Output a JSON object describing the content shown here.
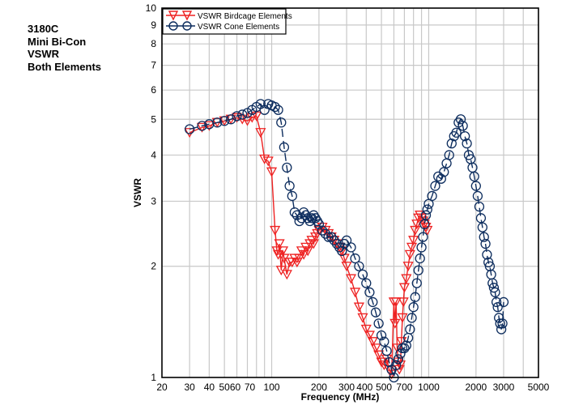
{
  "side_title": [
    "3180C",
    "Mini Bi-Con",
    "VSWR",
    "Both Elements"
  ],
  "chart_data": {
    "type": "line",
    "title": "3180C Mini Bi-Con VSWR Both Elements",
    "xlabel": "Frequency (MHz)",
    "ylabel": "VSWR",
    "xscale": "log",
    "yscale": "log",
    "xlim": [
      20,
      5000
    ],
    "ylim": [
      1,
      10
    ],
    "grid": true,
    "legend_position": "top-left",
    "x_ticks": [
      20,
      30,
      40,
      50,
      60,
      70,
      100,
      200,
      300,
      400,
      500,
      700,
      1000,
      2000,
      3000,
      5000
    ],
    "x_tick_labels": [
      "20",
      "30",
      "40",
      "50",
      "60",
      "70",
      "100",
      "200",
      "300",
      "400",
      "500",
      "700",
      "1000",
      "2000",
      "3000",
      "5000"
    ],
    "x_gridlines": [
      30,
      40,
      50,
      60,
      70,
      80,
      90,
      100,
      200,
      300,
      400,
      500,
      600,
      700,
      800,
      900,
      1000,
      2000,
      3000,
      4000
    ],
    "y_ticks": [
      1,
      2,
      3,
      4,
      5,
      6,
      7,
      8,
      9,
      10
    ],
    "y_tick_labels": [
      "1",
      "2",
      "3",
      "4",
      "5",
      "6",
      "7",
      "8",
      "9",
      "10"
    ],
    "series": [
      {
        "name": "VSWR Birdcage Elements",
        "color": "#ee2222",
        "marker": "triangle-down",
        "x": [
          30,
          36,
          40,
          45,
          50,
          55,
          60,
          65,
          70,
          75,
          80,
          85,
          90,
          95,
          100,
          105,
          108,
          110,
          112,
          115,
          118,
          120,
          125,
          130,
          135,
          140,
          145,
          150,
          155,
          160,
          165,
          170,
          175,
          180,
          185,
          190,
          195,
          200,
          210,
          220,
          230,
          240,
          250,
          260,
          270,
          280,
          290,
          300,
          320,
          340,
          360,
          380,
          400,
          420,
          440,
          460,
          480,
          500,
          520,
          540,
          560,
          580,
          600,
          610,
          620,
          630,
          640,
          650,
          660,
          670,
          680,
          690,
          700,
          720,
          740,
          760,
          780,
          800,
          820,
          840,
          860,
          880,
          900,
          920,
          940,
          960,
          980
        ],
        "y": [
          4.6,
          4.75,
          4.8,
          4.9,
          4.95,
          5.0,
          5.05,
          5.0,
          4.95,
          5.05,
          5.1,
          4.6,
          3.9,
          3.85,
          3.6,
          2.5,
          2.2,
          2.15,
          2.3,
          1.95,
          2.2,
          2.1,
          1.9,
          2.05,
          2.05,
          2.1,
          2.05,
          2.1,
          2.2,
          2.15,
          2.25,
          2.2,
          2.3,
          2.35,
          2.3,
          2.4,
          2.45,
          2.5,
          2.55,
          2.5,
          2.45,
          2.4,
          2.35,
          2.3,
          2.25,
          2.2,
          2.1,
          2.0,
          1.85,
          1.7,
          1.55,
          1.45,
          1.35,
          1.3,
          1.25,
          1.2,
          1.15,
          1.1,
          1.08,
          1.12,
          1.05,
          1.02,
          1.6,
          1.4,
          1.6,
          1.2,
          1.1,
          1.05,
          1.08,
          1.25,
          1.45,
          1.6,
          1.75,
          1.85,
          2.0,
          2.15,
          2.25,
          2.35,
          2.5,
          2.6,
          2.7,
          2.75,
          2.7,
          2.65,
          2.6,
          2.55,
          2.5
        ]
      },
      {
        "name": "VSWR Cone Elements",
        "color": "#0d2d5e",
        "marker": "circle",
        "x": [
          30,
          36,
          40,
          45,
          50,
          55,
          60,
          65,
          70,
          75,
          80,
          85,
          90,
          95,
          100,
          105,
          110,
          115,
          120,
          125,
          130,
          135,
          140,
          145,
          150,
          155,
          160,
          165,
          170,
          175,
          180,
          185,
          190,
          195,
          200,
          210,
          220,
          230,
          240,
          250,
          260,
          270,
          280,
          290,
          300,
          320,
          340,
          360,
          380,
          400,
          420,
          440,
          460,
          480,
          500,
          520,
          540,
          560,
          580,
          600,
          620,
          640,
          660,
          680,
          700,
          720,
          740,
          760,
          780,
          800,
          820,
          840,
          860,
          880,
          900,
          920,
          940,
          960,
          980,
          1000,
          1050,
          1100,
          1150,
          1200,
          1250,
          1300,
          1350,
          1400,
          1450,
          1500,
          1550,
          1600,
          1650,
          1700,
          1750,
          1800,
          1850,
          1900,
          1950,
          2000,
          2050,
          2100,
          2150,
          2200,
          2250,
          2300,
          2350,
          2400,
          2450,
          2500,
          2550,
          2600,
          2650,
          2700,
          2750,
          2800,
          2850,
          2900,
          2950,
          3000
        ],
        "y": [
          4.7,
          4.8,
          4.85,
          4.9,
          4.95,
          5.0,
          5.1,
          5.15,
          5.2,
          5.3,
          5.4,
          5.5,
          5.3,
          5.5,
          5.45,
          5.4,
          5.3,
          4.9,
          4.2,
          3.7,
          3.3,
          3.1,
          2.8,
          2.75,
          2.65,
          2.7,
          2.8,
          2.75,
          2.7,
          2.65,
          2.7,
          2.75,
          2.7,
          2.65,
          2.6,
          2.5,
          2.45,
          2.4,
          2.4,
          2.35,
          2.3,
          2.25,
          2.2,
          2.3,
          2.35,
          2.25,
          2.1,
          2.0,
          1.9,
          1.8,
          1.7,
          1.6,
          1.5,
          1.4,
          1.3,
          1.25,
          1.18,
          1.1,
          1.05,
          1.0,
          1.08,
          1.12,
          1.16,
          1.2,
          1.2,
          1.22,
          1.28,
          1.35,
          1.45,
          1.55,
          1.65,
          1.8,
          1.95,
          2.1,
          2.25,
          2.4,
          2.6,
          2.75,
          2.85,
          2.95,
          3.1,
          3.3,
          3.5,
          3.45,
          3.6,
          3.8,
          4.0,
          4.3,
          4.5,
          4.6,
          4.9,
          5.0,
          4.8,
          4.5,
          4.3,
          4.0,
          3.9,
          3.7,
          3.5,
          3.3,
          3.1,
          2.9,
          2.7,
          2.55,
          2.4,
          2.3,
          2.15,
          2.05,
          2.0,
          1.9,
          1.8,
          1.75,
          1.7,
          1.6,
          1.55,
          1.45,
          1.4,
          1.35,
          1.4,
          1.6
        ]
      }
    ]
  }
}
